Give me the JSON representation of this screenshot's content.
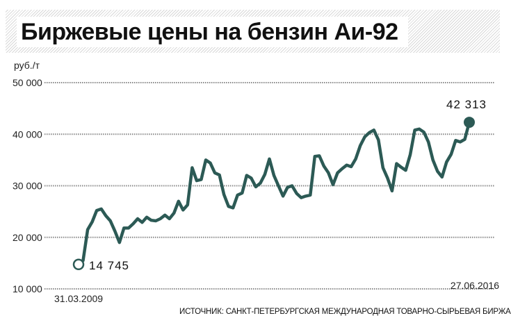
{
  "title": "Биржевые цены на бензин Аи-92",
  "source": "ИСТОЧНИК: САНКТ-ПЕТЕРБУРГСКАЯ МЕЖДУНАРОДНАЯ ТОВАРНО-СЫРЬЕВАЯ БИРЖА",
  "colors": {
    "line": "#2c5a55",
    "grid": "#888888"
  },
  "chart_data": {
    "type": "line",
    "title": "Биржевые цены на бензин Аи-92",
    "ylabel": "руб./т",
    "ylim": [
      10000,
      50000
    ],
    "yticks": [
      10000,
      20000,
      30000,
      40000,
      50000
    ],
    "ytick_labels": [
      "10 000",
      "20 000",
      "30 000",
      "40 000",
      "50 000"
    ],
    "grid": true,
    "x_start_label": "31.03.2009",
    "x_end_label": "27.06.2016",
    "start_value_label": "14 745",
    "end_value_label": "42 313",
    "series": [
      {
        "values": [
          14745,
          15500,
          21500,
          23000,
          25200,
          25500,
          24200,
          23200,
          21200,
          19000,
          21800,
          21800,
          22600,
          23600,
          22900,
          23900,
          23300,
          23200,
          23600,
          24300,
          23600,
          24700,
          27000,
          25300,
          26300,
          33500,
          31000,
          31200,
          35000,
          34400,
          32500,
          32100,
          28300,
          26000,
          25700,
          28200,
          28600,
          32000,
          31500,
          29800,
          30500,
          32200,
          35200,
          32000,
          30000,
          28000,
          29700,
          30000,
          28500,
          27700,
          28000,
          28200,
          35700,
          35800,
          33800,
          32500,
          30200,
          32500,
          33300,
          34000,
          33700,
          35200,
          37800,
          39500,
          40300,
          40800,
          38900,
          33500,
          31500,
          29000,
          34300,
          33600,
          33000,
          36000,
          40800,
          41000,
          40400,
          38500,
          35000,
          32800,
          31700,
          34600,
          36100,
          38800,
          38500,
          39000,
          42313
        ]
      }
    ]
  }
}
